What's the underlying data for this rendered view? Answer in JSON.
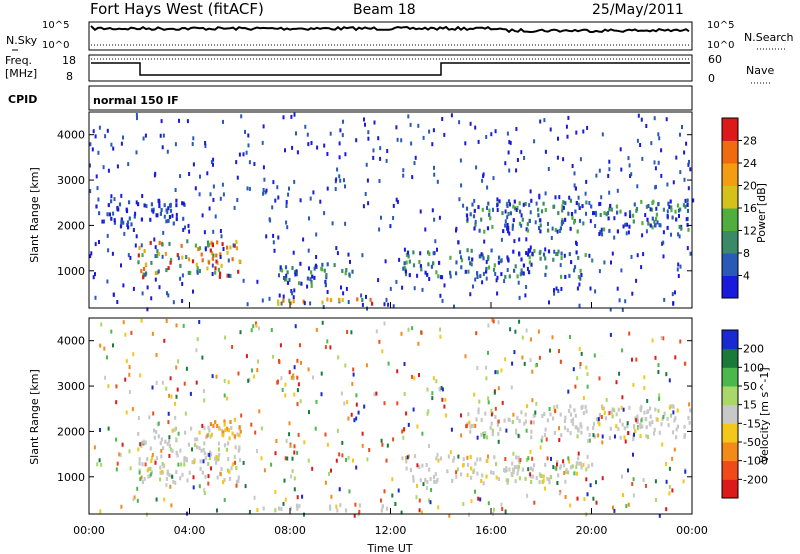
{
  "header": {
    "station": "Fort Hays West (fitACF)",
    "beam": "Beam 18",
    "date": "25/May/2011"
  },
  "top_panels": {
    "nsky_label": "N.Sky",
    "nsky_tick_high": "10^5",
    "nsky_tick_low": "10^0",
    "nsearch_label": "N.Search",
    "freq_label": "Freq.",
    "freq_unit": "[MHz]",
    "freq_tick_high": "18",
    "freq_tick_low": "8",
    "nave_label": "Nave",
    "nave_tick_high": "60",
    "nave_tick_low": "0",
    "cpid_label": "CPID",
    "cpid_value": "normal 150 IF"
  },
  "chart_data": [
    {
      "type": "heatmap",
      "name": "power",
      "ylabel": "Slant Range [km]",
      "yticks": [
        "1000",
        "2000",
        "3000",
        "4000"
      ],
      "ylim": [
        180,
        4500
      ],
      "xlim": [
        0,
        24
      ],
      "colorbar": {
        "label": "Power [dB]",
        "ticks": [
          "4",
          "8",
          "12",
          "16",
          "20",
          "24",
          "28"
        ],
        "colors": [
          "#1a1adc",
          "#2a5ab8",
          "#3a8a68",
          "#4fae3c",
          "#d4c21a",
          "#f49c12",
          "#f06a10",
          "#dc1a1a"
        ]
      },
      "features": [
        {
          "t": [
            1.9,
            6.0
          ],
          "r": [
            900,
            1700
          ],
          "level": "high"
        },
        {
          "t": [
            6.3,
            12.0
          ],
          "r": [
            300,
            420
          ],
          "level": "high"
        },
        {
          "t": [
            7.5,
            10.5
          ],
          "r": [
            700,
            1200
          ],
          "level": "mid"
        },
        {
          "t": [
            12.5,
            20.0
          ],
          "r": [
            900,
            1500
          ],
          "level": "mid"
        },
        {
          "t": [
            15.0,
            24.0
          ],
          "r": [
            1900,
            2600
          ],
          "level": "mid"
        },
        {
          "t": [
            0.2,
            3.8
          ],
          "r": [
            2000,
            2600
          ],
          "level": "low"
        }
      ]
    },
    {
      "type": "heatmap",
      "name": "velocity",
      "ylabel": "Slant Range [km]",
      "yticks": [
        "1000",
        "2000",
        "3000",
        "4000"
      ],
      "ylim": [
        180,
        4500
      ],
      "xlim": [
        0,
        24
      ],
      "xticks": [
        "00:00",
        "04:00",
        "08:00",
        "12:00",
        "16:00",
        "20:00",
        "00:00"
      ],
      "xlabel": "Time UT",
      "colorbar": {
        "label": "Velocity [m s^-1]",
        "ticks": [
          "200",
          "100",
          "50",
          "15",
          "-15",
          "-50",
          "-100",
          "-200"
        ],
        "colors": [
          "#1a2ad2",
          "#1a7a3a",
          "#4cb84c",
          "#a8d86a",
          "#c8c8c8",
          "#f4c81a",
          "#f48a1a",
          "#f04a1a",
          "#dc1a1a"
        ]
      },
      "features": [
        {
          "t": [
            1.9,
            6.0
          ],
          "r": [
            900,
            2200
          ],
          "level": "ground"
        },
        {
          "t": [
            6.3,
            12.0
          ],
          "r": [
            300,
            420
          ],
          "level": "ground"
        },
        {
          "t": [
            4.5,
            6.0
          ],
          "r": [
            1800,
            2300
          ],
          "level": "negative"
        },
        {
          "t": [
            12.5,
            20.0
          ],
          "r": [
            900,
            1500
          ],
          "level": "ground"
        },
        {
          "t": [
            15.0,
            24.0
          ],
          "r": [
            1900,
            2600
          ],
          "level": "ground"
        }
      ]
    }
  ]
}
